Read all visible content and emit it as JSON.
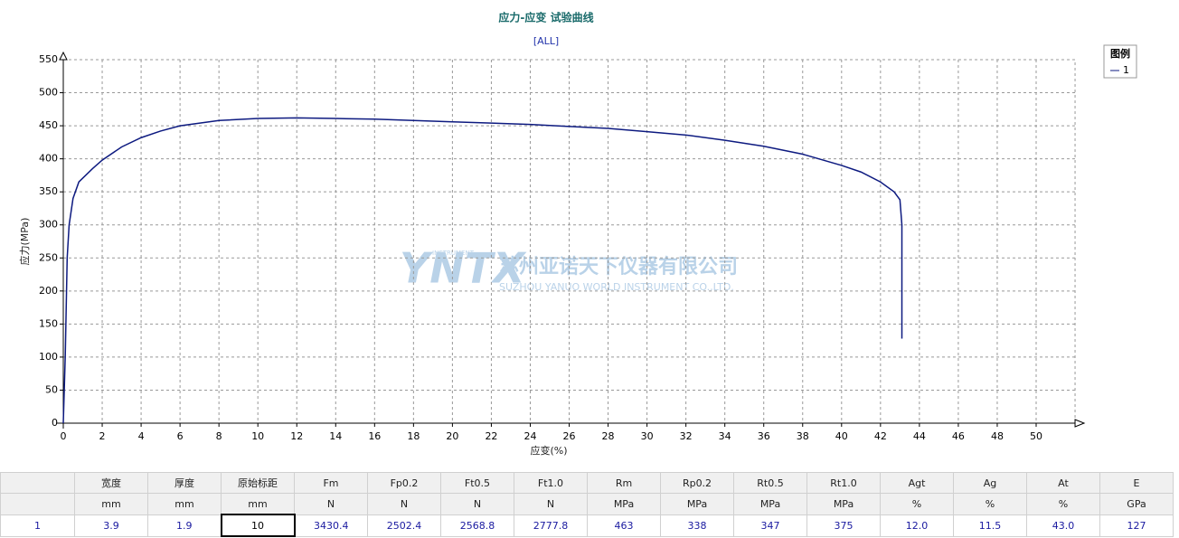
{
  "chart_data": {
    "type": "line",
    "title": "应力-应变 试验曲线",
    "subtitle": "[ALL]",
    "x_label": "应变(%)",
    "y_label": "应力(MPa)",
    "x": [
      0,
      0.1,
      0.2,
      0.3,
      0.5,
      0.8,
      1.5,
      2,
      3,
      4,
      5,
      6,
      8,
      10,
      12,
      14,
      16,
      18,
      20,
      22,
      24,
      26,
      28,
      30,
      32,
      34,
      36,
      38,
      40,
      41,
      42,
      42.7,
      43,
      43.1,
      43.1,
      43.1
    ],
    "series": [
      {
        "name": "1",
        "color": "#0d1a80",
        "values": [
          0,
          100,
          250,
          300,
          340,
          365,
          385,
          398,
          418,
          432,
          442,
          450,
          458,
          461,
          462,
          461,
          460,
          458,
          456,
          454,
          452,
          449,
          446,
          441,
          436,
          428,
          419,
          407,
          390,
          380,
          365,
          350,
          338,
          300,
          200,
          128
        ]
      }
    ],
    "xlim": [
      0,
      52
    ],
    "ylim": [
      0,
      550
    ],
    "xticks": [
      0,
      2,
      4,
      6,
      8,
      10,
      12,
      14,
      16,
      18,
      20,
      22,
      24,
      26,
      28,
      30,
      32,
      34,
      36,
      38,
      40,
      42,
      44,
      46,
      48,
      50
    ],
    "yticks": [
      0,
      50,
      100,
      150,
      200,
      250,
      300,
      350,
      400,
      450,
      500,
      550
    ],
    "grid": true,
    "legend_title": "图例",
    "legend_position": "top-right"
  },
  "watermark": {
    "logo": "YNTX",
    "logo_sub": "INSTRUMENT",
    "company": "苏州亚诺天下仪器有限公司",
    "company_en": "SUZHOU YANUO WORLD INSTRUMENT CO.,LTD."
  },
  "table": {
    "columns": [
      {
        "name": "宽度",
        "unit": "mm"
      },
      {
        "name": "厚度",
        "unit": "mm"
      },
      {
        "name": "原始标距",
        "unit": "mm"
      },
      {
        "name": "Fm",
        "unit": "N"
      },
      {
        "name": "Fp0.2",
        "unit": "N"
      },
      {
        "name": "Ft0.5",
        "unit": "N"
      },
      {
        "name": "Ft1.0",
        "unit": "N"
      },
      {
        "name": "Rm",
        "unit": "MPa"
      },
      {
        "name": "Rp0.2",
        "unit": "MPa"
      },
      {
        "name": "Rt0.5",
        "unit": "MPa"
      },
      {
        "name": "Rt1.0",
        "unit": "MPa"
      },
      {
        "name": "Agt",
        "unit": "%"
      },
      {
        "name": "Ag",
        "unit": "%"
      },
      {
        "name": "At",
        "unit": "%"
      },
      {
        "name": "E",
        "unit": "GPa"
      }
    ],
    "rows": [
      {
        "label": "1",
        "cells": [
          "3.9",
          "1.9",
          "10",
          "3430.4",
          "2502.4",
          "2568.8",
          "2777.8",
          "463",
          "338",
          "347",
          "375",
          "12.0",
          "11.5",
          "43.0",
          "127"
        ]
      }
    ]
  }
}
